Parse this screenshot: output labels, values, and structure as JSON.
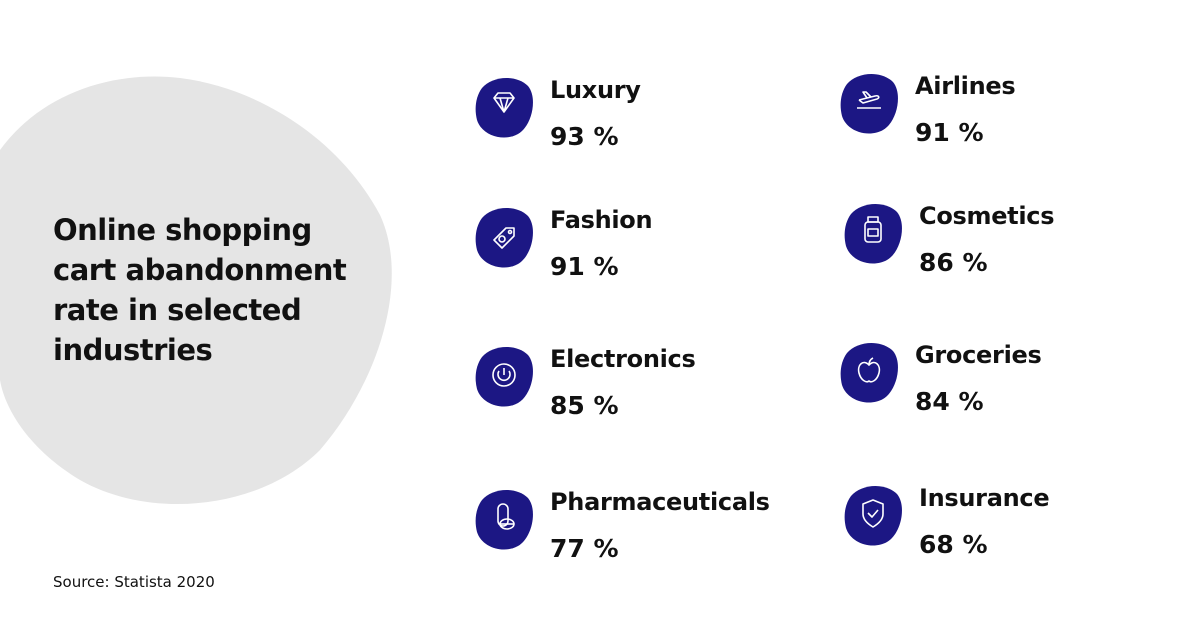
{
  "title": "Online shopping cart abandonment rate in selected industries",
  "source": "Source: Statista 2020",
  "items": [
    {
      "label": "Luxury",
      "value": "93 %"
    },
    {
      "label": "Fashion",
      "value": "91 %"
    },
    {
      "label": "Electronics",
      "value": "85 %"
    },
    {
      "label": "Pharmaceuticals",
      "value": "77 %"
    },
    {
      "label": "Airlines",
      "value": "91 %"
    },
    {
      "label": "Cosmetics",
      "value": "86 %"
    },
    {
      "label": "Groceries",
      "value": "84 %"
    },
    {
      "label": "Insurance",
      "value": "68 %"
    }
  ]
}
